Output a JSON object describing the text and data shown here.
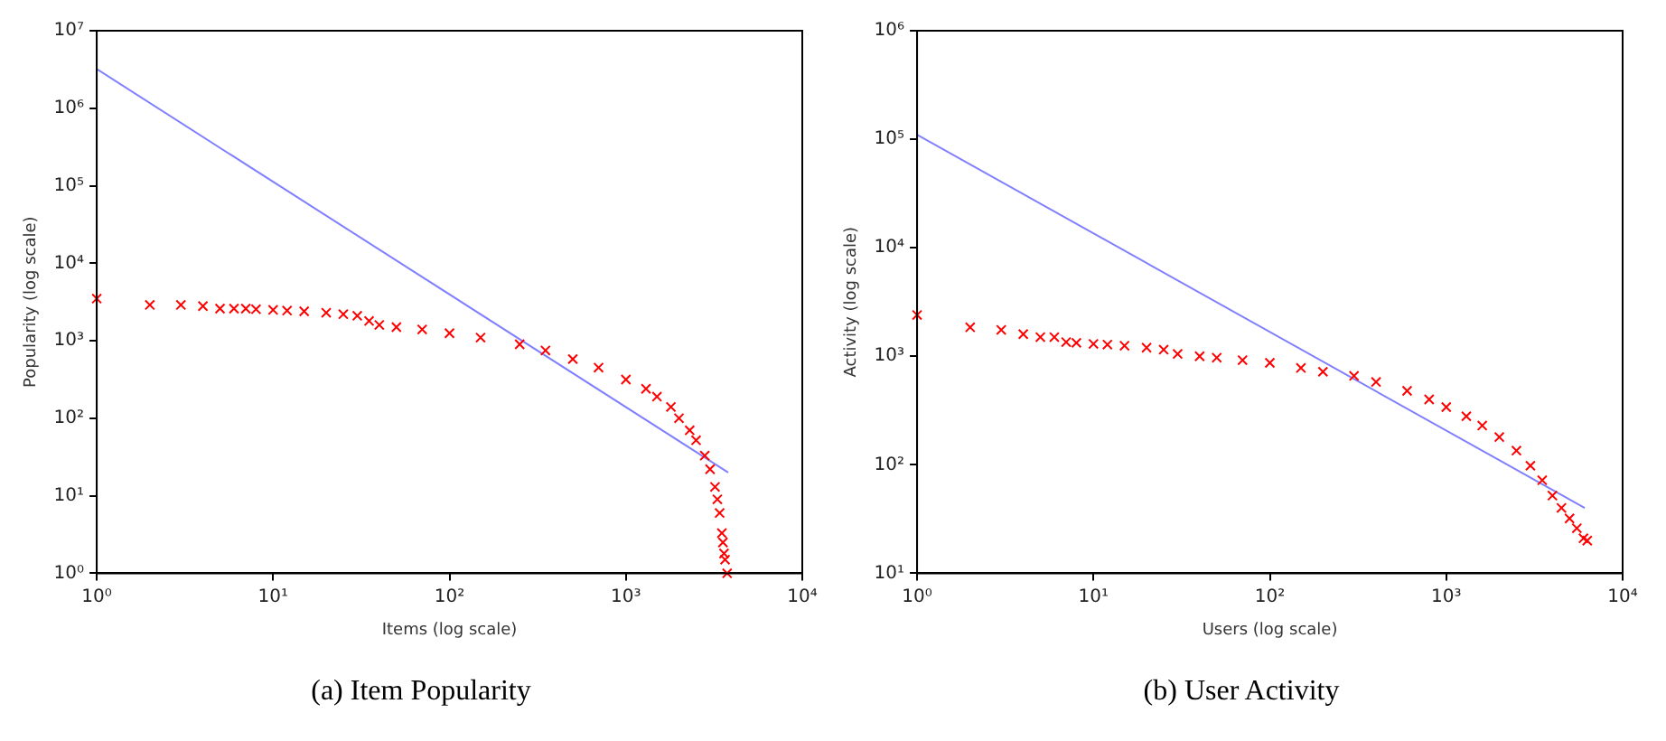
{
  "chart_data": [
    {
      "type": "scatter",
      "title": "(a) Item Popularity",
      "xlabel": "Items (log scale)",
      "ylabel": "Popularity (log scale)",
      "log": "xy",
      "grid": false,
      "legend": false,
      "marker": "cross",
      "xlim": [
        1,
        10000
      ],
      "ylim": [
        1,
        10000000
      ],
      "xticks": [
        {
          "value": 1,
          "label": "10⁰"
        },
        {
          "value": 10,
          "label": "10¹"
        },
        {
          "value": 100,
          "label": "10²"
        },
        {
          "value": 1000,
          "label": "10³"
        },
        {
          "value": 10000,
          "label": "10⁴"
        }
      ],
      "yticks": [
        {
          "value": 1,
          "label": "10⁰"
        },
        {
          "value": 10,
          "label": "10¹"
        },
        {
          "value": 100,
          "label": "10²"
        },
        {
          "value": 1000,
          "label": "10³"
        },
        {
          "value": 10000,
          "label": "10⁴"
        },
        {
          "value": 100000,
          "label": "10⁵"
        },
        {
          "value": 1000000,
          "label": "10⁶"
        },
        {
          "value": 10000000,
          "label": "10⁷"
        }
      ],
      "series": [
        {
          "type": "scatter",
          "color": "#ff0000",
          "x": [
            1,
            2,
            3,
            4,
            5,
            6,
            7,
            8,
            10,
            12,
            15,
            20,
            25,
            30,
            35,
            40,
            50,
            70,
            100,
            150,
            250,
            350,
            500,
            700,
            1000,
            1300,
            1500,
            1800,
            2000,
            2300,
            2500,
            2800,
            3000,
            3200,
            3300,
            3400,
            3500,
            3550,
            3600,
            3650,
            3750
          ],
          "values": [
            3500,
            2900,
            2900,
            2800,
            2600,
            2600,
            2600,
            2550,
            2500,
            2450,
            2400,
            2300,
            2200,
            2100,
            1800,
            1600,
            1500,
            1400,
            1250,
            1100,
            900,
            750,
            580,
            450,
            316,
            240,
            190,
            140,
            100,
            70,
            52,
            33,
            22,
            13,
            9,
            6,
            3.3,
            2.5,
            1.8,
            1.5,
            1
          ]
        },
        {
          "type": "line",
          "marker": "none",
          "color": "#8080ff",
          "x": [
            1,
            3800
          ],
          "values": [
            3200000,
            20
          ]
        }
      ]
    },
    {
      "type": "scatter",
      "title": "(b) User Activity",
      "xlabel": "Users (log scale)",
      "ylabel": "Activity (log scale)",
      "log": "xy",
      "grid": false,
      "legend": false,
      "marker": "cross",
      "xlim": [
        1,
        10000
      ],
      "ylim": [
        10,
        1000000
      ],
      "xticks": [
        {
          "value": 1,
          "label": "10⁰"
        },
        {
          "value": 10,
          "label": "10¹"
        },
        {
          "value": 100,
          "label": "10²"
        },
        {
          "value": 1000,
          "label": "10³"
        },
        {
          "value": 10000,
          "label": "10⁴"
        }
      ],
      "yticks": [
        {
          "value": 10,
          "label": "10¹"
        },
        {
          "value": 100,
          "label": "10²"
        },
        {
          "value": 1000,
          "label": "10³"
        },
        {
          "value": 10000,
          "label": "10⁴"
        },
        {
          "value": 100000,
          "label": "10⁵"
        },
        {
          "value": 1000000,
          "label": "10⁶"
        }
      ],
      "series": [
        {
          "type": "scatter",
          "color": "#ff0000",
          "x": [
            1,
            2,
            3,
            4,
            5,
            6,
            7,
            8,
            10,
            12,
            15,
            20,
            25,
            30,
            40,
            50,
            70,
            100,
            150,
            200,
            300,
            400,
            600,
            800,
            1000,
            1300,
            1600,
            2000,
            2500,
            3000,
            3500,
            4000,
            4500,
            5000,
            5500,
            6000,
            6300
          ],
          "values": [
            2400,
            1850,
            1750,
            1600,
            1500,
            1500,
            1350,
            1330,
            1300,
            1280,
            1250,
            1200,
            1150,
            1050,
            1000,
            970,
            920,
            870,
            780,
            720,
            660,
            580,
            480,
            400,
            340,
            280,
            230,
            180,
            135,
            98,
            72,
            52,
            40,
            32,
            26,
            21,
            20
          ]
        },
        {
          "type": "line",
          "marker": "none",
          "color": "#8080ff",
          "x": [
            1,
            6100
          ],
          "values": [
            110000,
            40
          ]
        }
      ]
    }
  ]
}
